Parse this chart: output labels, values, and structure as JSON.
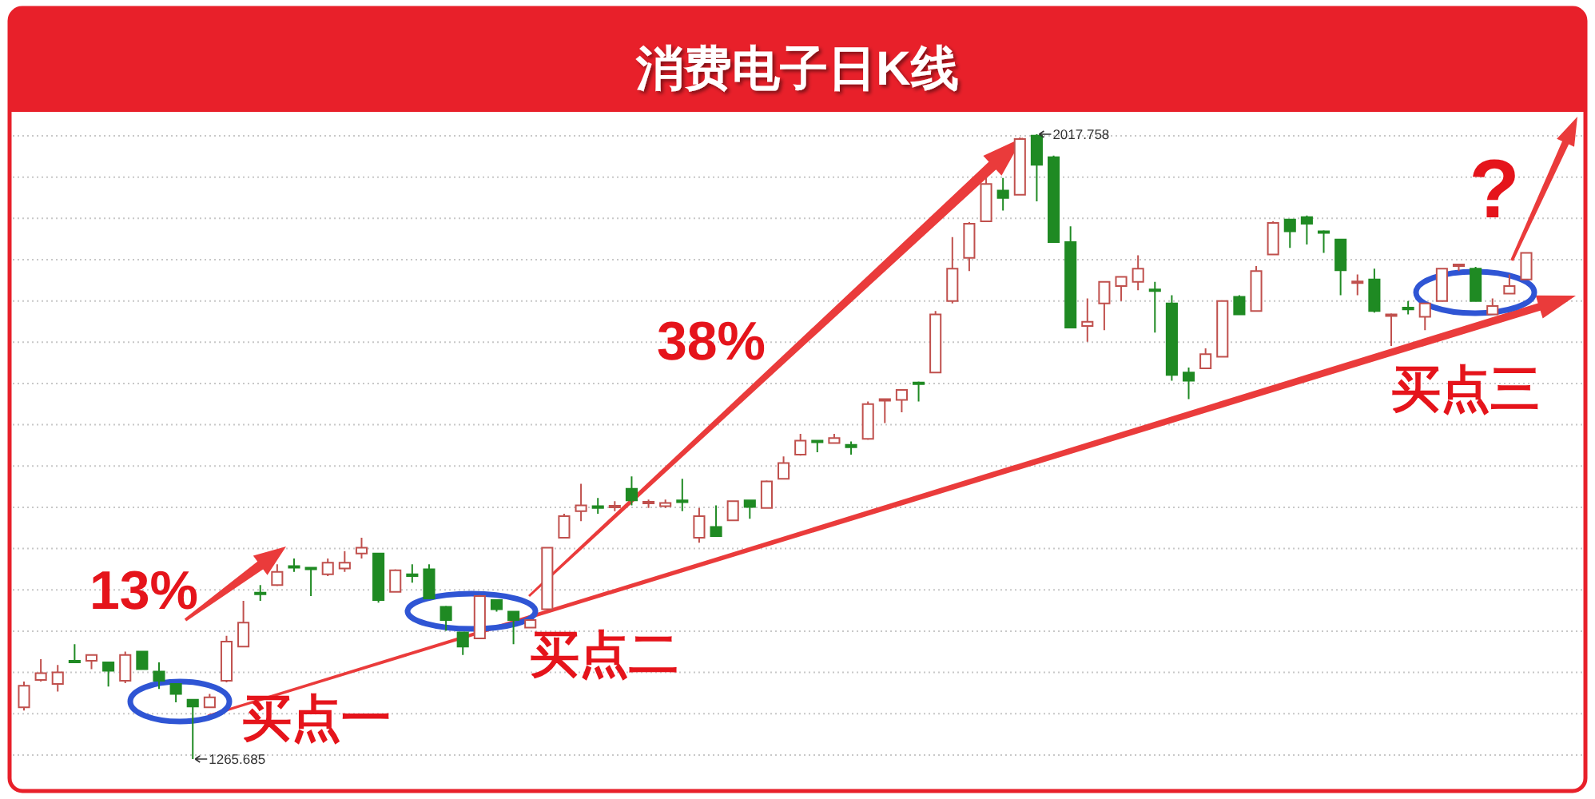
{
  "chart_data": {
    "type": "candlestick",
    "title": "消费电子日K线",
    "categories": [
      null,
      null,
      null,
      null,
      null,
      null,
      null,
      null,
      null,
      null,
      null,
      null,
      null,
      null,
      null,
      null,
      null,
      null,
      null,
      null,
      null,
      null,
      null,
      null,
      null,
      null,
      null,
      null,
      null,
      null,
      null,
      null,
      null,
      null,
      null,
      null,
      null,
      null,
      null,
      null,
      null,
      null,
      null,
      null,
      null,
      null,
      null,
      null,
      null,
      null,
      null,
      null,
      null,
      null,
      null,
      null,
      null,
      null,
      null,
      null,
      null,
      null,
      null,
      null,
      null,
      null,
      null,
      null,
      null,
      null,
      null,
      null,
      null,
      null,
      null,
      null,
      null,
      null,
      null,
      null,
      null,
      null,
      null,
      null,
      null,
      null,
      null,
      null,
      null,
      null
    ],
    "ohlc": [
      [
        1328,
        1359,
        1324,
        1354
      ],
      [
        1361,
        1386,
        1359,
        1369
      ],
      [
        1356,
        1379,
        1347,
        1370
      ],
      [
        1384,
        1404,
        1382,
        1382
      ],
      [
        1384,
        1392,
        1374,
        1391
      ],
      [
        1382,
        1383,
        1353,
        1372
      ],
      [
        1360,
        1395,
        1357,
        1391
      ],
      [
        1395,
        1396,
        1373,
        1374
      ],
      [
        1371,
        1382,
        1350,
        1360
      ],
      [
        1356,
        1357,
        1334,
        1344
      ],
      [
        1337,
        1338,
        1265.685,
        1329
      ],
      [
        1328,
        1344,
        1327,
        1340
      ],
      [
        1360,
        1414,
        1358,
        1407
      ],
      [
        1401,
        1456,
        1400,
        1430
      ],
      [
        1466,
        1475,
        1456,
        1464
      ],
      [
        1475,
        1500,
        1474,
        1491
      ],
      [
        1498,
        1507,
        1491,
        1496
      ],
      [
        1496,
        1496,
        1462,
        1494
      ],
      [
        1488,
        1507,
        1486,
        1502
      ],
      [
        1495,
        1516,
        1491,
        1502
      ],
      [
        1513,
        1532,
        1507,
        1520
      ],
      [
        1513,
        1514,
        1454,
        1457
      ],
      [
        1467,
        1494,
        1466,
        1493
      ],
      [
        1488,
        1500,
        1478,
        1486
      ],
      [
        1494,
        1500,
        1458,
        1459
      ],
      [
        1449,
        1450,
        1420,
        1433
      ],
      [
        1418,
        1419,
        1391,
        1401
      ],
      [
        1411,
        1463,
        1410,
        1462
      ],
      [
        1457,
        1458,
        1443,
        1446
      ],
      [
        1443,
        1444,
        1404,
        1433
      ],
      [
        1424,
        1434,
        1423,
        1433
      ],
      [
        1446,
        1521,
        1445,
        1520
      ],
      [
        1532,
        1561,
        1531,
        1558
      ],
      [
        1564,
        1597,
        1552,
        1571
      ],
      [
        1570,
        1580,
        1561,
        1568
      ],
      [
        1569,
        1576,
        1564,
        1570
      ],
      [
        1591,
        1606,
        1571,
        1577
      ],
      [
        1574,
        1578,
        1568,
        1575
      ],
      [
        1570,
        1578,
        1568,
        1574
      ],
      [
        1577,
        1603,
        1564,
        1575
      ],
      [
        1532,
        1568,
        1526,
        1558
      ],
      [
        1545,
        1571,
        1533,
        1534
      ],
      [
        1553,
        1577,
        1552,
        1576
      ],
      [
        1577,
        1578,
        1555,
        1569
      ],
      [
        1568,
        1601,
        1567,
        1600
      ],
      [
        1603,
        1630,
        1602,
        1622
      ],
      [
        1632,
        1657,
        1631,
        1649
      ],
      [
        1649,
        1650,
        1635,
        1647
      ],
      [
        1646,
        1657,
        1645,
        1652
      ],
      [
        1644,
        1648,
        1632,
        1641
      ],
      [
        1651,
        1696,
        1650,
        1693
      ],
      [
        1697,
        1700,
        1670,
        1699
      ],
      [
        1698,
        1711,
        1683,
        1710
      ],
      [
        1719,
        1720,
        1696,
        1717
      ],
      [
        1731,
        1805,
        1730,
        1801
      ],
      [
        1817,
        1894,
        1814,
        1856
      ],
      [
        1869,
        1912,
        1853,
        1910
      ],
      [
        1913,
        1965,
        1912,
        1958
      ],
      [
        1950,
        1965,
        1926,
        1941
      ],
      [
        1945,
        2014,
        1944,
        2012
      ],
      [
        2016,
        2017.758,
        1937,
        1981
      ],
      [
        1990,
        1992,
        1887,
        1888
      ],
      [
        1888,
        1907,
        1784,
        1785
      ],
      [
        1787,
        1820,
        1768,
        1792
      ],
      [
        1814,
        1841,
        1782,
        1840
      ],
      [
        1835,
        1847,
        1817,
        1846
      ],
      [
        1840,
        1872,
        1830,
        1856
      ],
      [
        1831,
        1840,
        1779,
        1829
      ],
      [
        1814,
        1824,
        1721,
        1728
      ],
      [
        1731,
        1737,
        1699,
        1721
      ],
      [
        1736,
        1760,
        1735,
        1753
      ],
      [
        1750,
        1818,
        1749,
        1817
      ],
      [
        1822,
        1824,
        1800,
        1801
      ],
      [
        1805,
        1859,
        1804,
        1853
      ],
      [
        1873,
        1913,
        1872,
        1911
      ],
      [
        1915,
        1916,
        1881,
        1901
      ],
      [
        1918,
        1920,
        1885,
        1910
      ],
      [
        1901,
        1902,
        1875,
        1899
      ],
      [
        1891,
        1892,
        1824,
        1854
      ],
      [
        1839,
        1849,
        1824,
        1840
      ],
      [
        1843,
        1856,
        1803,
        1805
      ],
      [
        1799,
        1802,
        1763,
        1801
      ],
      [
        1809,
        1817,
        1801,
        1807
      ],
      [
        1798,
        1815,
        1782,
        1814
      ],
      [
        1817,
        1857,
        1816,
        1856
      ],
      [
        1859,
        1862,
        1853,
        1861
      ],
      [
        1856,
        1858,
        1816,
        1817
      ],
      [
        1801,
        1820,
        1800,
        1811
      ],
      [
        1826,
        1849,
        1825,
        1835
      ],
      [
        1843,
        1876,
        1842,
        1875
      ]
    ],
    "colors": [
      "#c0504d",
      "#c0504d",
      "#c0504d",
      "#1f8a23",
      "#c0504d",
      "#1f8a23",
      "#c0504d",
      "#1f8a23",
      "#1f8a23",
      "#1f8a23",
      "#1f8a23",
      "#c0504d",
      "#c0504d",
      "#c0504d",
      "#1f8a23",
      "#c0504d",
      "#1f8a23",
      "#1f8a23",
      "#c0504d",
      "#c0504d",
      "#c0504d",
      "#1f8a23",
      "#c0504d",
      "#1f8a23",
      "#1f8a23",
      "#1f8a23",
      "#1f8a23",
      "#c0504d",
      "#1f8a23",
      "#1f8a23",
      "#c0504d",
      "#c0504d",
      "#c0504d",
      "#c0504d",
      "#1f8a23",
      "#c0504d",
      "#1f8a23",
      "#c0504d",
      "#c0504d",
      "#1f8a23",
      "#c0504d",
      "#1f8a23",
      "#c0504d",
      "#1f8a23",
      "#c0504d",
      "#c0504d",
      "#c0504d",
      "#1f8a23",
      "#c0504d",
      "#1f8a23",
      "#c0504d",
      "#c0504d",
      "#c0504d",
      "#1f8a23",
      "#c0504d",
      "#c0504d",
      "#c0504d",
      "#c0504d",
      "#1f8a23",
      "#c0504d",
      "#1f8a23",
      "#1f8a23",
      "#1f8a23",
      "#c0504d",
      "#c0504d",
      "#c0504d",
      "#c0504d",
      "#1f8a23",
      "#1f8a23",
      "#1f8a23",
      "#c0504d",
      "#c0504d",
      "#1f8a23",
      "#c0504d",
      "#c0504d",
      "#1f8a23",
      "#1f8a23",
      "#1f8a23",
      "#1f8a23",
      "#c0504d",
      "#1f8a23",
      "#c0504d",
      "#1f8a23",
      "#c0504d",
      "#c0504d",
      "#c0504d",
      "#1f8a23",
      "#c0504d",
      "#c0504d",
      "#c0504d"
    ],
    "grid": "y",
    "annotations": [
      "2017.758",
      "1265.685",
      "13%",
      "38%",
      "买点一",
      "买点二",
      "买点三",
      "?"
    ]
  }
}
